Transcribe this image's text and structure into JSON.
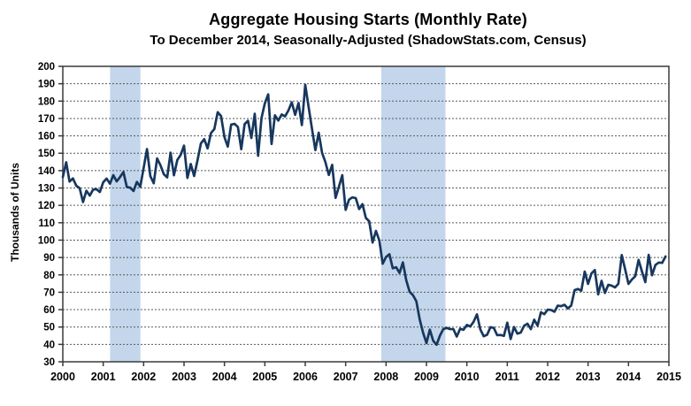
{
  "chart_data": {
    "type": "line",
    "title": "Aggregate Housing Starts (Monthly Rate)",
    "subtitle": "To December 2014, Seasonally-Adjusted (ShadowStats.com, Census)",
    "ylabel": "Thousands of Units",
    "xlabel": "",
    "ylim": [
      30,
      200
    ],
    "xlim": [
      2000,
      2015
    ],
    "yticks": [
      200,
      190,
      180,
      170,
      160,
      150,
      140,
      130,
      120,
      110,
      100,
      90,
      80,
      70,
      60,
      50,
      40,
      30
    ],
    "xticks": [
      2000,
      2001,
      2002,
      2003,
      2004,
      2005,
      2006,
      2007,
      2008,
      2009,
      2010,
      2011,
      2012,
      2013,
      2014,
      2015
    ],
    "grid": true,
    "legend": "none",
    "recession_bands": [
      {
        "start": 2001.17,
        "end": 2001.92
      },
      {
        "start": 2007.88,
        "end": 2009.47
      }
    ],
    "series": [
      {
        "name": "Aggregate Housing Starts (thousands of units per month)",
        "start_year": 2000,
        "frequency": "monthly",
        "end_label": "December 2014",
        "values": [
          136.3,
          144.8,
          133.7,
          135.5,
          131.3,
          129.9,
          121.9,
          128.4,
          125.6,
          129.1,
          129.3,
          127.7,
          133.3,
          135.4,
          132.5,
          137.4,
          133.8,
          136.3,
          139.2,
          130.6,
          130.2,
          128.3,
          133.5,
          130.7,
          141.5,
          152.4,
          136.8,
          132.7,
          147.0,
          143.1,
          137.9,
          136.1,
          150.3,
          137.3,
          146.1,
          149.0,
          154.4,
          135.8,
          143.8,
          136.9,
          145.9,
          155.6,
          158.1,
          152.8,
          161.6,
          163.9,
          173.6,
          171.4,
          159.3,
          153.8,
          166.5,
          166.9,
          165.1,
          152.3,
          166.8,
          168.7,
          158.8,
          172.7,
          148.5,
          170.2,
          178.7,
          183.9,
          155.3,
          171.8,
          168.8,
          172.3,
          171.2,
          174.6,
          179.3,
          172.1,
          178.9,
          166.2,
          189.4,
          176.6,
          164.1,
          151.8,
          161.8,
          150.2,
          144.8,
          137.5,
          143.3,
          124.3,
          130.8,
          137.4,
          117.4,
          123.3,
          124.6,
          124.2,
          117.9,
          120.7,
          112.8,
          110.8,
          98.6,
          105.3,
          99.8,
          86.4,
          90.3,
          91.9,
          83.8,
          84.4,
          81.1,
          87.2,
          76.9,
          70.3,
          68.3,
          64.8,
          54.3,
          46.7,
          40.8,
          48.5,
          42.1,
          39.8,
          45.0,
          48.8,
          49.5,
          48.8,
          48.8,
          44.5,
          49.0,
          48.4,
          51.2,
          50.3,
          53.0,
          57.3,
          48.6,
          44.7,
          45.5,
          49.9,
          49.5,
          45.3,
          45.4,
          44.9,
          52.5,
          43.1,
          50.0,
          46.2,
          46.8,
          50.7,
          51.9,
          48.8,
          54.2,
          50.8,
          58.5,
          57.4,
          60.0,
          59.8,
          58.8,
          62.3,
          62.0,
          62.8,
          60.7,
          62.4,
          71.2,
          71.9,
          70.9,
          81.9,
          74.8,
          80.8,
          82.8,
          68.8,
          76.6,
          69.6,
          74.3,
          73.8,
          72.8,
          74.9,
          91.4,
          83.3,
          74.8,
          77.3,
          79.2,
          88.6,
          82.0,
          75.8,
          91.5,
          79.8,
          85.7,
          87.1,
          86.9,
          90.6
        ]
      }
    ],
    "colors": {
      "line": "#17375E",
      "recession_band": "#C3D6EB",
      "grid": "#595959",
      "axis": "#3A3A3A",
      "text": "#000000",
      "background": "#FFFFFF"
    }
  }
}
